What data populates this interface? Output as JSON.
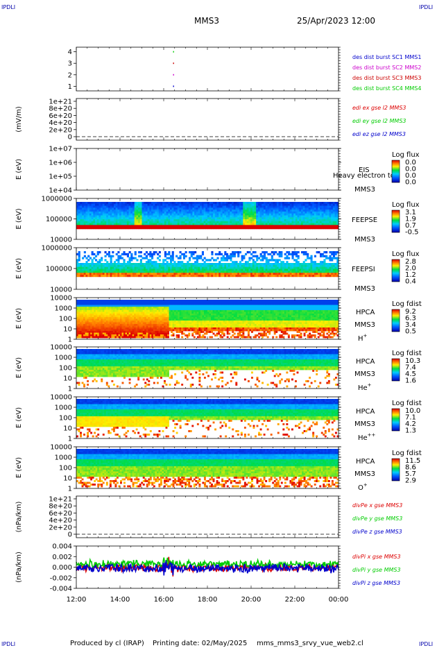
{
  "header": {
    "corner_label": "IPDLI",
    "title": "MMS3",
    "datetime": "25/Apr/2023 12:00"
  },
  "footer": {
    "produced_by": "Produced by cl (IRAP)",
    "printing_date": "Printing date: 02/May/2025",
    "script_name": "mms_mms3_srvy_vue_web2.cl"
  },
  "colors": {
    "sc1": "#0000cc",
    "sc2": "#cc00cc",
    "sc3": "#cc0000",
    "sc4": "#00cc00",
    "red": "#dd0000",
    "green": "#00cc00",
    "blue": "#0000cc"
  },
  "time_axis": [
    "12:00",
    "14:00",
    "16:00",
    "18:00",
    "20:00",
    "22:00",
    "00:00"
  ],
  "chart_data": [
    {
      "type": "scatter",
      "panel": "burst",
      "yticks": [
        "1",
        "2",
        "3",
        "4"
      ],
      "ylim": [
        0.6,
        4.4
      ],
      "legend": [
        "des dist burst SC1 MMS1",
        "des dist burst SC2 MMS2",
        "des dist burst SC3 MMS3",
        "des dist burst SC4 MMS4"
      ],
      "points": [
        {
          "x": "16:27",
          "y": 4,
          "series": "SC4"
        },
        {
          "x": "16:27",
          "y": 3,
          "series": "SC3"
        },
        {
          "x": "16:27",
          "y": 2,
          "series": "SC2"
        },
        {
          "x": "16:27",
          "y": 1,
          "series": "SC1"
        }
      ]
    },
    {
      "type": "line",
      "panel": "edi",
      "ylabel": "(mV/m)",
      "yticks": [
        "1e+21",
        "8e+20",
        "6e+20",
        "4e+20",
        "2e+20",
        "0"
      ],
      "legend": [
        "edi ex gse l2 MMS3",
        "edi ey gse l2 MMS3",
        "edi ez gse l2 MMS3"
      ],
      "note": "no data; dashed zero line"
    },
    {
      "type": "heatmap",
      "panel": "eis",
      "ylabel": "E (eV)",
      "yticks": [
        "1e+07",
        "1e+06",
        "1e+05",
        "1e+04"
      ],
      "instrument": "EIS",
      "instrument_overlay": "Heavy electron to",
      "spacecraft": "MMS3",
      "colorbar_title": "Log flux",
      "colorbar_ticks": [
        "0.0",
        "0.0",
        "0.0",
        "0.0"
      ]
    },
    {
      "type": "heatmap",
      "panel": "feepse",
      "ylabel": "E (eV)",
      "yticks": [
        "1000000",
        "100000",
        "10000"
      ],
      "instrument": "FEEPSE",
      "spacecraft": "MMS3",
      "colorbar_title": "Log flux",
      "colorbar_ticks": [
        "3.1",
        "1.9",
        "0.7",
        "-0.5"
      ]
    },
    {
      "type": "heatmap",
      "panel": "feepsi",
      "ylabel": "E (eV)",
      "yticks": [
        "1000000",
        "100000",
        "10000"
      ],
      "instrument": "FEEPSI",
      "spacecraft": "MMS3",
      "colorbar_title": "Log flux",
      "colorbar_ticks": [
        "2.8",
        "2.0",
        "1.2",
        "0.4"
      ]
    },
    {
      "type": "heatmap",
      "panel": "hpca_h",
      "ylabel": "E (eV)",
      "yticks": [
        "10000",
        "1000",
        "100",
        "10",
        "1"
      ],
      "instrument": "HPCA",
      "spacecraft": "MMS3",
      "species": "H",
      "species_charge": "+",
      "colorbar_title": "Log fdist",
      "colorbar_ticks": [
        "9.2",
        "6.3",
        "3.4",
        "0.5"
      ]
    },
    {
      "type": "heatmap",
      "panel": "hpca_he1",
      "ylabel": "E (eV)",
      "yticks": [
        "10000",
        "1000",
        "100",
        "10",
        "1"
      ],
      "instrument": "HPCA",
      "spacecraft": "MMS3",
      "species": "He",
      "species_charge": "+",
      "colorbar_title": "Log fdist",
      "colorbar_ticks": [
        "10.3",
        "7.4",
        "4.5",
        "1.6"
      ]
    },
    {
      "type": "heatmap",
      "panel": "hpca_he2",
      "ylabel": "E (eV)",
      "yticks": [
        "10000",
        "1000",
        "100",
        "10",
        "1"
      ],
      "instrument": "HPCA",
      "spacecraft": "MMS3",
      "species": "He",
      "species_charge": "++",
      "colorbar_title": "Log fdist",
      "colorbar_ticks": [
        "10.0",
        "7.1",
        "4.2",
        "1.3"
      ]
    },
    {
      "type": "heatmap",
      "panel": "hpca_o",
      "ylabel": "E (eV)",
      "yticks": [
        "10000",
        "1000",
        "100",
        "10",
        "1"
      ],
      "instrument": "HPCA",
      "spacecraft": "MMS3",
      "species": "O",
      "species_charge": "+",
      "colorbar_title": "Log fdist",
      "colorbar_ticks": [
        "11.5",
        "8.6",
        "5.7",
        "2.9"
      ]
    },
    {
      "type": "line",
      "panel": "divpe",
      "ylabel": "(nPa/km)",
      "yticks": [
        "1e+21",
        "8e+20",
        "6e+20",
        "4e+20",
        "2e+20",
        "0"
      ],
      "legend": [
        "divPe x gse MMS3",
        "divPe y gse MMS3",
        "divPe z gse MMS3"
      ],
      "note": "no data; dashed zero line"
    },
    {
      "type": "line",
      "panel": "divpi",
      "ylabel": "(nPa/km)",
      "yticks": [
        "0.004",
        "0.002",
        "0.000",
        "-0.002",
        "-0.004"
      ],
      "ylim": [
        -0.004,
        0.004
      ],
      "legend": [
        "divPi x gse MMS3",
        "divPi y gse MMS3",
        "divPi z gse MMS3"
      ]
    }
  ]
}
